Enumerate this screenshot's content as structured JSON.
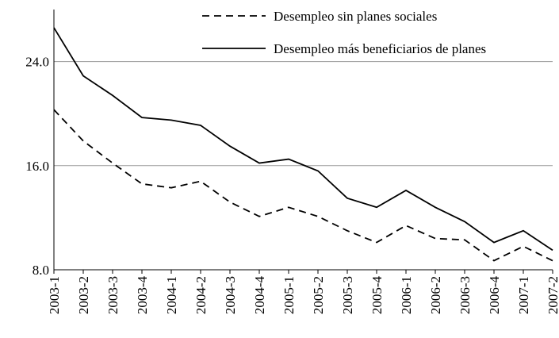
{
  "chart_data": {
    "type": "line",
    "categories": [
      "2003-1",
      "2003-2",
      "2003-3",
      "2003-4",
      "2004-1",
      "2004-2",
      "2004-3",
      "2004-4",
      "2005-1",
      "2005-2",
      "2005-3",
      "2005-4",
      "2006-1",
      "2006-2",
      "2006-3",
      "2006-4",
      "2007-1",
      "2007-2"
    ],
    "series": [
      {
        "name": "Desempleo sin planes sociales",
        "color": "#000000",
        "dash": true,
        "values": [
          20.3,
          17.9,
          16.2,
          14.6,
          14.3,
          14.8,
          13.2,
          12.1,
          12.8,
          12.1,
          11.0,
          10.1,
          11.4,
          10.4,
          10.3,
          8.7,
          9.8,
          8.7
        ]
      },
      {
        "name": "Desempleo más beneficiarios de planes",
        "color": "#000000",
        "dash": false,
        "values": [
          26.6,
          22.9,
          21.4,
          19.7,
          19.5,
          19.1,
          17.5,
          16.2,
          16.5,
          15.6,
          13.5,
          12.8,
          14.1,
          12.8,
          11.7,
          10.1,
          11.0,
          9.5
        ]
      }
    ],
    "ylim": [
      8,
      28
    ],
    "yticks": [
      {
        "value": 8,
        "label": "8.0"
      },
      {
        "value": 16,
        "label": "16.0"
      },
      {
        "value": 24,
        "label": "24.0"
      }
    ],
    "grid": true,
    "legend": "top-right"
  }
}
